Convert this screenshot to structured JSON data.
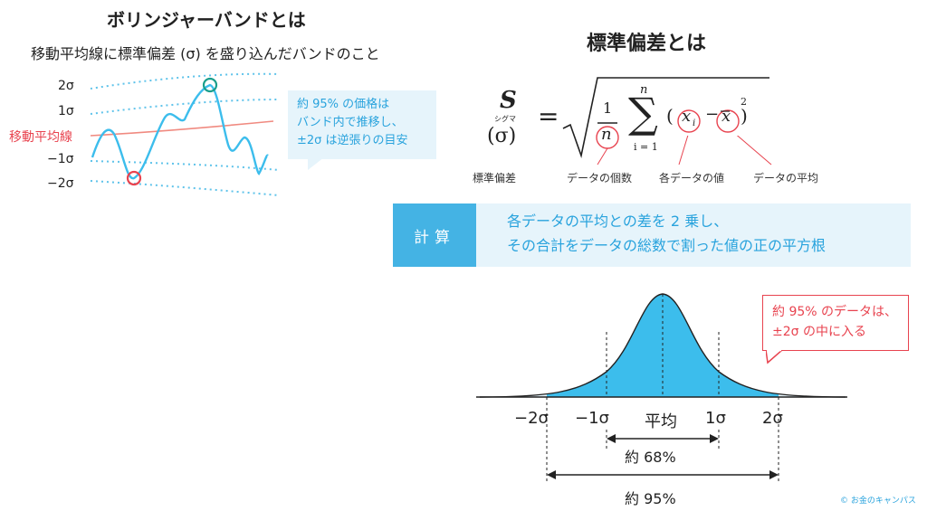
{
  "left": {
    "title": "ボリンジャーバンドとは",
    "subtitle": "移動平均線に標準偏差 (σ) を盛り込んだバンドのこと",
    "band_labels": {
      "p2": "2σ",
      "p1": "1σ",
      "ma": "移動平均線",
      "m1": "−1σ",
      "m2": "−2σ"
    },
    "callout": [
      "約 95% の価格は",
      "バンド内で推移し、",
      "±2σ は逆張りの目安"
    ]
  },
  "right": {
    "title": "標準偏差とは",
    "formula": {
      "s": "S",
      "ruby": "シグマ",
      "sigma": "(σ)",
      "eq": "=",
      "one": "1",
      "n": "n",
      "n_top": "n",
      "sum_from": "i = 1",
      "xi": "x",
      "i": "i",
      "xbar": "x",
      "sq": "2",
      "lp": "(",
      "rp": ")",
      "minus": "−"
    },
    "labels": {
      "std": "標準偏差",
      "count": "データの個数",
      "each": "各データの値",
      "avg": "データの平均"
    },
    "calc_tag": "計算",
    "calc_lines": [
      "各データの平均との差を 2 乗し、",
      "その合計をデータの総数で割った値の正の平方根"
    ],
    "red_callout": [
      "約 95% のデータは、",
      "±2σ の中に入る"
    ],
    "axis": {
      "m2": "−2σ",
      "m1": "−1σ",
      "mean": "平均",
      "p1": "1σ",
      "p2": "2σ"
    },
    "pct68": "約 68%",
    "pct95": "約 95%",
    "credit": "お金のキャンパス"
  },
  "colors": {
    "blue": "#3cbdec",
    "light_blue": "#e6f4fb",
    "red": "#e8434f",
    "teal": "#1a9e8c",
    "dot": "#5fc3ea"
  }
}
